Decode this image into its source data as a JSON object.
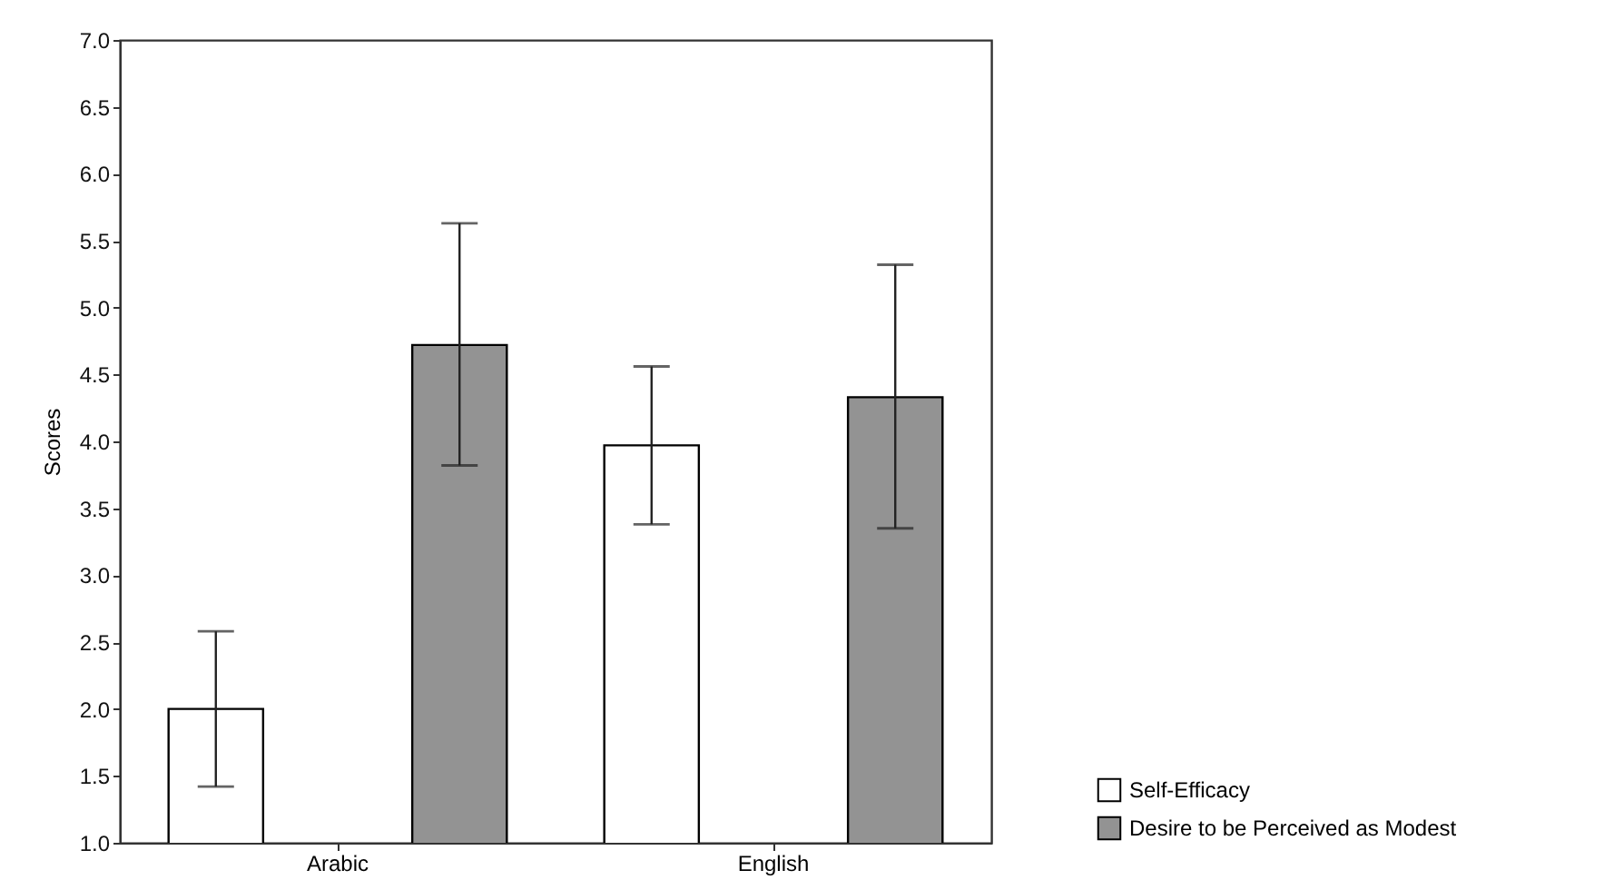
{
  "chart_data": {
    "type": "bar",
    "ylabel": "Scores",
    "categories": [
      "Arabic",
      "English"
    ],
    "series": [
      {
        "name": "Self-Efficacy",
        "color": "#ffffff",
        "values": [
          2.0,
          3.97
        ],
        "errors": [
          [
            1.42,
            2.58
          ],
          [
            3.38,
            4.56
          ]
        ]
      },
      {
        "name": "Desire to be Perceived as Modest",
        "color": "#939393",
        "values": [
          4.72,
          4.33
        ],
        "errors": [
          [
            3.82,
            5.63
          ],
          [
            3.35,
            5.32
          ]
        ]
      }
    ],
    "ylim": [
      1,
      7
    ],
    "yticks": [
      {
        "value": 1,
        "label": "1.0"
      },
      {
        "value": 1.5,
        "label": "1.5"
      },
      {
        "value": 2,
        "label": "2.0"
      },
      {
        "value": 2.5,
        "label": "2.5"
      },
      {
        "value": 3,
        "label": "3.0"
      },
      {
        "value": 3.5,
        "label": "3.5"
      },
      {
        "value": 4,
        "label": "4.0"
      },
      {
        "value": 4.5,
        "label": "4.5"
      },
      {
        "value": 5,
        "label": "5.0"
      },
      {
        "value": 5.5,
        "label": "5.5"
      },
      {
        "value": 6,
        "label": "6.0"
      },
      {
        "value": 6.5,
        "label": "6.5"
      },
      {
        "value": 7,
        "label": "7.0"
      }
    ],
    "grid": false,
    "legend": "bottom right"
  }
}
